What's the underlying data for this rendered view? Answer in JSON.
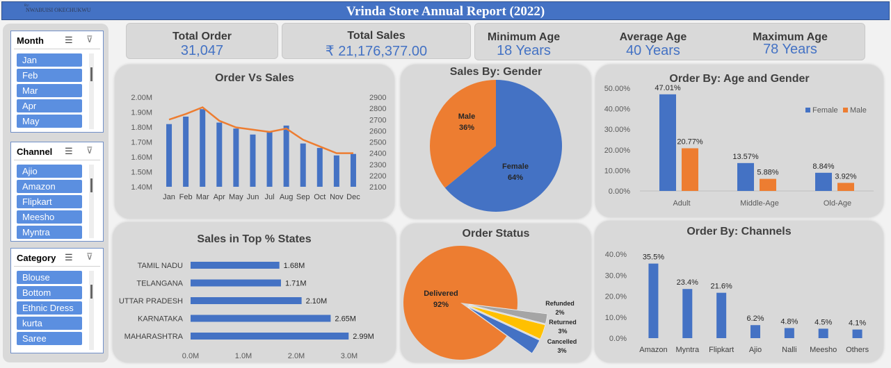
{
  "header": {
    "credit_small": "By:",
    "credit": "NWABUISI OKECHUKWU",
    "title": "Vrinda Store Annual Report (2022)"
  },
  "kpis": {
    "total_order_label": "Total Order",
    "total_order_value": "31,047",
    "total_sales_label": "Total Sales",
    "total_sales_value": "₹ 21,176,377.00",
    "min_age_label": "Minimum Age",
    "min_age_value": "18 Years",
    "avg_age_label": "Average Age",
    "avg_age_value": "40 Years",
    "max_age_label": "Maximum Age",
    "max_age_value": "78 Years"
  },
  "slicers": [
    {
      "name": "Month",
      "items": [
        "Jan",
        "Feb",
        "Mar",
        "Apr",
        "May"
      ]
    },
    {
      "name": "Channel",
      "items": [
        "Ajio",
        "Amazon",
        "Flipkart",
        "Meesho",
        "Myntra"
      ]
    },
    {
      "name": "Category",
      "items": [
        "Blouse",
        "Bottom",
        "Ethnic Dress",
        "kurta",
        "Saree"
      ]
    }
  ],
  "colors": {
    "blue": "#4472c4",
    "orange": "#ed7d31",
    "gray": "#a5a5a5",
    "gold": "#ffc000",
    "slicer_item": "#5b8fe0"
  },
  "chart_data": [
    {
      "id": "order_vs_sales",
      "type": "bar",
      "title": "Order Vs Sales",
      "categories": [
        "Jan",
        "Feb",
        "Mar",
        "Apr",
        "May",
        "Jun",
        "Jul",
        "Aug",
        "Sep",
        "Oct",
        "Nov",
        "Dec"
      ],
      "series": [
        {
          "name": "Sales",
          "axis": "left",
          "kind": "bar",
          "values": [
            1.82,
            1.87,
            1.92,
            1.83,
            1.79,
            1.75,
            1.77,
            1.81,
            1.69,
            1.66,
            1.61,
            1.62
          ]
        },
        {
          "name": "Orders",
          "axis": "right",
          "kind": "line",
          "values": [
            2700,
            2750,
            2810,
            2690,
            2630,
            2610,
            2590,
            2620,
            2520,
            2460,
            2400,
            2400
          ]
        }
      ],
      "y_left": {
        "min": 1.4,
        "max": 2.0,
        "ticks": [
          "1.40M",
          "1.50M",
          "1.60M",
          "1.70M",
          "1.80M",
          "1.90M",
          "2.00M"
        ]
      },
      "y_right": {
        "min": 2100,
        "max": 2900,
        "ticks": [
          "2100",
          "2200",
          "2300",
          "2400",
          "2500",
          "2600",
          "2700",
          "2800",
          "2900"
        ]
      }
    },
    {
      "id": "sales_by_gender",
      "type": "pie",
      "title": "Sales By: Gender",
      "slices": [
        {
          "label": "Female",
          "value": 64,
          "text": "64%"
        },
        {
          "label": "Male",
          "value": 36,
          "text": "36%"
        }
      ]
    },
    {
      "id": "order_by_age_gender",
      "type": "bar",
      "title": "Order By: Age and Gender",
      "categories": [
        "Adult",
        "Middle-Age",
        "Old-Age"
      ],
      "series": [
        {
          "name": "Female",
          "values": [
            47.01,
            13.57,
            8.84
          ],
          "labels": [
            "47.01%",
            "13.57%",
            "8.84%"
          ]
        },
        {
          "name": "Male",
          "values": [
            20.77,
            5.88,
            3.92
          ],
          "labels": [
            "20.77%",
            "5.88%",
            "3.92%"
          ]
        }
      ],
      "ylim": [
        0,
        50
      ],
      "ticks": [
        "0.00%",
        "10.00%",
        "20.00%",
        "30.00%",
        "40.00%",
        "50.00%"
      ],
      "legend": "top-right"
    },
    {
      "id": "sales_top_states",
      "type": "bar",
      "orientation": "horizontal",
      "title": "Sales in Top % States",
      "categories": [
        "TAMIL NADU",
        "TELANGANA",
        "UTTAR PRADESH",
        "KARNATAKA",
        "MAHARASHTRA"
      ],
      "values": [
        1.68,
        1.71,
        2.1,
        2.65,
        2.99
      ],
      "labels": [
        "1.68M",
        "1.71M",
        "2.10M",
        "2.65M",
        "2.99M"
      ],
      "xlim": [
        0,
        3
      ],
      "ticks": [
        "0.0M",
        "1.0M",
        "2.0M",
        "3.0M"
      ]
    },
    {
      "id": "order_status",
      "type": "pie",
      "title": "Order Status",
      "slices": [
        {
          "label": "Delivered",
          "value": 92,
          "text": "92%"
        },
        {
          "label": "Refunded",
          "value": 2,
          "text": "2%"
        },
        {
          "label": "Returned",
          "value": 3,
          "text": "3%"
        },
        {
          "label": "Cancelled",
          "value": 3,
          "text": "3%"
        }
      ]
    },
    {
      "id": "order_by_channels",
      "type": "bar",
      "title": "Order By: Channels",
      "categories": [
        "Amazon",
        "Myntra",
        "Flipkart",
        "Ajio",
        "Nalli",
        "Meesho",
        "Others"
      ],
      "values": [
        35.5,
        23.4,
        21.6,
        6.2,
        4.8,
        4.5,
        4.1
      ],
      "labels": [
        "35.5%",
        "23.4%",
        "21.6%",
        "6.2%",
        "4.8%",
        "4.5%",
        "4.1%"
      ],
      "ylim": [
        0,
        40
      ],
      "ticks": [
        "0.0%",
        "10.0%",
        "20.0%",
        "30.0%",
        "40.0%"
      ]
    }
  ]
}
